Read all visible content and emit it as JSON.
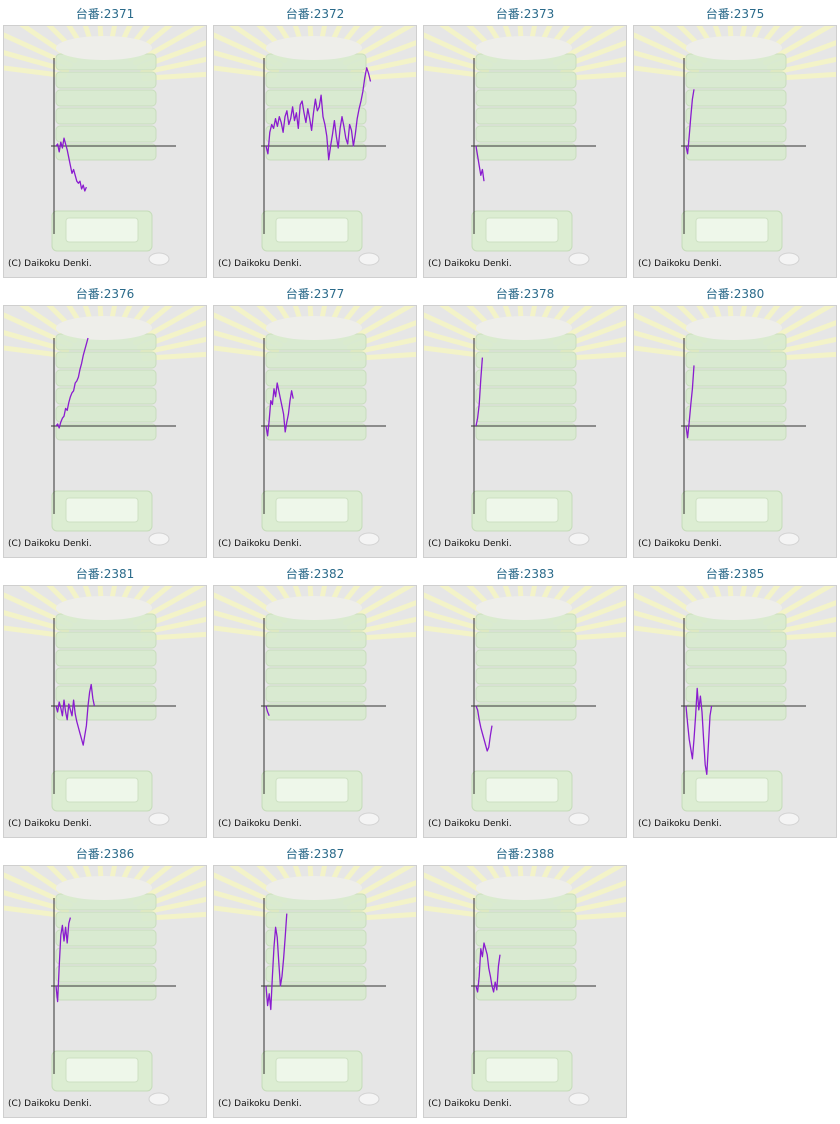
{
  "copyright": "(C) Daikoku Denki.",
  "colors": {
    "line": "#8a1ccf",
    "axis": "#333333",
    "title": "#2a6a8a",
    "panel": "#e6e6e6"
  },
  "chart_data": [
    {
      "type": "line",
      "title": "台番:2371",
      "y": [
        0,
        2,
        -6,
        4,
        -2,
        8,
        2,
        -4,
        -12,
        -20,
        -28,
        -24,
        -30,
        -36,
        -38,
        -36,
        -44,
        -40,
        -46,
        -42
      ]
    },
    {
      "type": "line",
      "title": "台番:2372",
      "y": [
        0,
        -8,
        14,
        22,
        18,
        28,
        20,
        30,
        24,
        14,
        30,
        36,
        22,
        28,
        40,
        26,
        34,
        18,
        42,
        46,
        34,
        24,
        38,
        28,
        16,
        34,
        48,
        36,
        40,
        52,
        30,
        22,
        10,
        -14,
        0,
        12,
        26,
        10,
        -2,
        18,
        30,
        20,
        8,
        2,
        22,
        16,
        0,
        12,
        28,
        38,
        46,
        56,
        70,
        80,
        74,
        66
      ]
    },
    {
      "type": "line",
      "title": "台番:2373",
      "y": [
        0,
        -10,
        -20,
        -30,
        -24,
        -36
      ]
    },
    {
      "type": "line",
      "title": "台番:2375",
      "y": [
        0,
        -8,
        10,
        30,
        48,
        58
      ]
    },
    {
      "type": "line",
      "title": "台番:2376",
      "y": [
        0,
        2,
        -2,
        4,
        8,
        10,
        18,
        16,
        24,
        30,
        34,
        36,
        44,
        46,
        50,
        58,
        64,
        72,
        78,
        84,
        90
      ]
    },
    {
      "type": "line",
      "title": "台番:2377",
      "y": [
        0,
        -10,
        6,
        26,
        22,
        38,
        30,
        44,
        36,
        28,
        20,
        12,
        -6,
        4,
        12,
        26,
        36,
        28
      ]
    },
    {
      "type": "line",
      "title": "台番:2378",
      "y": [
        0,
        8,
        22,
        48,
        70
      ]
    },
    {
      "type": "line",
      "title": "台番:2380",
      "y": [
        0,
        -12,
        4,
        22,
        38,
        62
      ]
    },
    {
      "type": "line",
      "title": "台番:2381",
      "y": [
        0,
        -6,
        4,
        -2,
        -10,
        6,
        -6,
        -14,
        2,
        -4,
        -10,
        6,
        -8,
        -16,
        -22,
        -28,
        -34,
        -40,
        -30,
        -20,
        0,
        14,
        22,
        8,
        0
      ]
    },
    {
      "type": "line",
      "title": "台番:2382",
      "y": [
        0,
        -6,
        -10
      ]
    },
    {
      "type": "line",
      "title": "台番:2383",
      "y": [
        0,
        -4,
        -14,
        -22,
        -28,
        -34,
        -40,
        -46,
        -42,
        -30,
        -20
      ]
    },
    {
      "type": "line",
      "title": "台番:2385",
      "y": [
        0,
        -18,
        -34,
        -44,
        -54,
        -34,
        -10,
        18,
        -4,
        10,
        -6,
        -34,
        -60,
        -70,
        -40,
        -10,
        0
      ]
    },
    {
      "type": "line",
      "title": "台番:2386",
      "y": [
        0,
        -16,
        20,
        52,
        62,
        46,
        60,
        44,
        64,
        70
      ]
    },
    {
      "type": "line",
      "title": "台番:2387",
      "y": [
        0,
        -20,
        -8,
        -24,
        10,
        40,
        60,
        50,
        24,
        0,
        10,
        28,
        50,
        74
      ]
    },
    {
      "type": "line",
      "title": "台番:2388",
      "y": [
        0,
        -6,
        10,
        38,
        30,
        44,
        38,
        32,
        18,
        10,
        0,
        -6,
        4,
        -4,
        20,
        32
      ]
    }
  ]
}
